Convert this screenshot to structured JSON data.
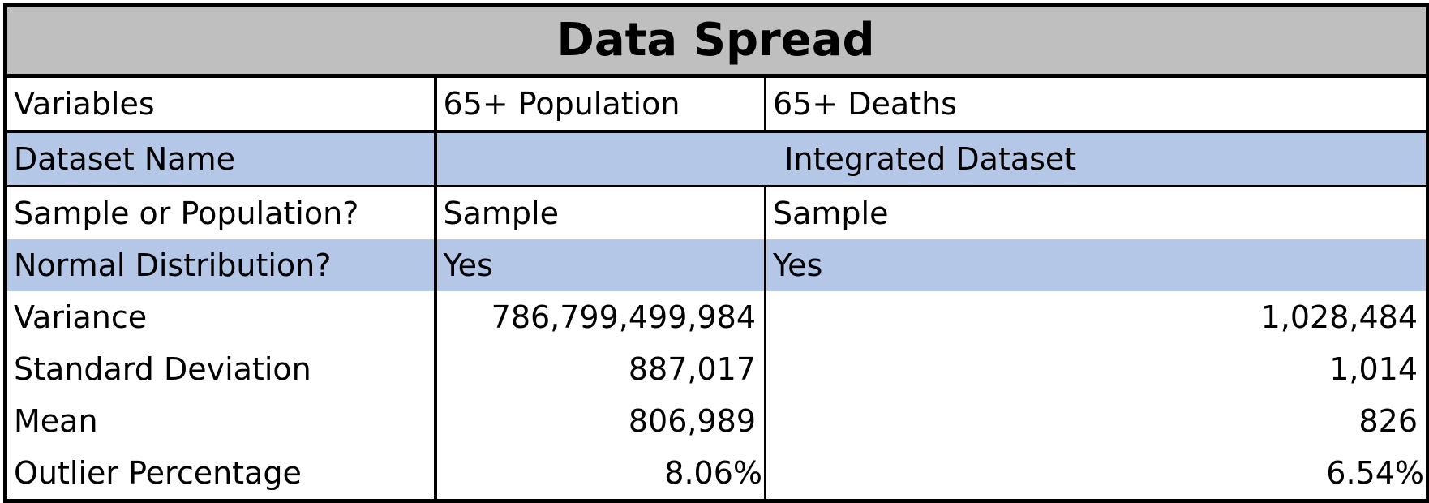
{
  "title": "Data Spread",
  "header": {
    "label": "Variables",
    "col1": "65+ Population",
    "col2": "65+ Deaths"
  },
  "dataset": {
    "label": "Dataset Name",
    "value": "Integrated Dataset"
  },
  "rows": [
    {
      "label": "Sample or Population?",
      "col1": "Sample",
      "col2": "Sample"
    },
    {
      "label": "Normal Distribution?",
      "col1": "Yes",
      "col2": "Yes"
    },
    {
      "label": "Variance",
      "col1": "786,799,499,984",
      "col2": "1,028,484"
    },
    {
      "label": "Standard Deviation",
      "col1": "887,017",
      "col2": "1,014"
    },
    {
      "label": "Mean",
      "col1": "806,989",
      "col2": "826"
    },
    {
      "label": "Outlier Percentage",
      "col1": "8.06%",
      "col2": "6.54%"
    }
  ],
  "colors": {
    "title_background": "#bfbfbf",
    "band_background": "#b4c7e7",
    "border": "#000000"
  }
}
